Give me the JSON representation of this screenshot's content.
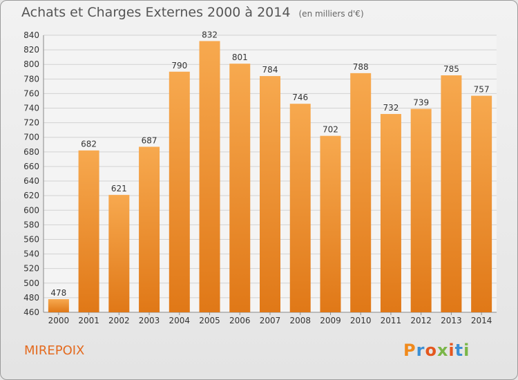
{
  "title": "Achats et Charges Externes 2000 à 2014",
  "subtitle": "(en milliers d'€)",
  "place": "MIREPOIX",
  "logo": {
    "text": "Proxiti",
    "letter_colors": [
      "#f08a1c",
      "#3a8fd4",
      "#e4571e",
      "#7ab648",
      "#e4571e",
      "#3a8fd4",
      "#7ab648"
    ]
  },
  "colors": {
    "bar_top": "#f7a94f",
    "bar_bottom": "#e07817",
    "grid": "#d2d2d2",
    "axis_text": "#333333"
  },
  "chart_data": {
    "type": "bar",
    "title": "Achats et Charges Externes 2000 à 2014",
    "categories": [
      "2000",
      "2001",
      "2002",
      "2003",
      "2004",
      "2005",
      "2006",
      "2007",
      "2008",
      "2009",
      "2010",
      "2011",
      "2012",
      "2013",
      "2014"
    ],
    "values": [
      478,
      682,
      621,
      687,
      790,
      832,
      801,
      784,
      746,
      702,
      788,
      732,
      739,
      785,
      757
    ],
    "ylim": [
      460,
      840
    ],
    "yticks": [
      460,
      480,
      500,
      520,
      540,
      560,
      580,
      600,
      620,
      640,
      660,
      680,
      700,
      720,
      740,
      760,
      780,
      800,
      820,
      840
    ],
    "grid": true
  }
}
